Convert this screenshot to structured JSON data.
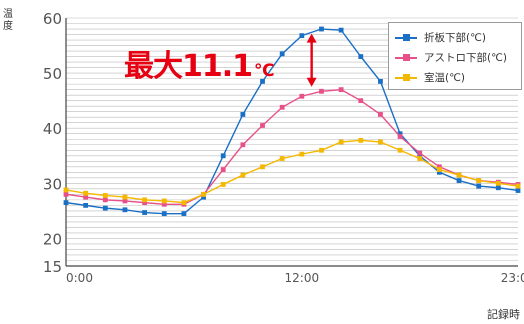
{
  "chart_data": {
    "type": "line",
    "ylabel": "温度",
    "xlabel": "記録時",
    "x_range": [
      0,
      23
    ],
    "y_range": [
      15,
      60
    ],
    "y_ticks": [
      15,
      20,
      30,
      40,
      50,
      60
    ],
    "x_ticks": [
      {
        "value": 0,
        "label": "0:00"
      },
      {
        "value": 12,
        "label": "12:00"
      },
      {
        "value": 23,
        "label": "23:00"
      }
    ],
    "grid": "horizontal-minor",
    "legend_position": "top-right",
    "x": [
      0,
      1,
      2,
      3,
      4,
      5,
      6,
      7,
      8,
      9,
      10,
      11,
      12,
      13,
      14,
      15,
      16,
      17,
      18,
      19,
      20,
      21,
      22,
      23
    ],
    "series": [
      {
        "name": "折板下部(℃)",
        "color": "#1a6fc6",
        "marker": "square",
        "values": [
          26.5,
          26.0,
          25.5,
          25.2,
          24.7,
          24.5,
          24.5,
          27.5,
          35.0,
          42.5,
          48.5,
          53.5,
          56.8,
          58.0,
          57.8,
          53.0,
          48.5,
          39.0,
          35.0,
          32.0,
          30.5,
          29.5,
          29.2,
          28.7
        ]
      },
      {
        "name": "アストロ下部(℃)",
        "color": "#e8508a",
        "marker": "square",
        "values": [
          28.0,
          27.5,
          27.0,
          26.8,
          26.5,
          26.2,
          26.2,
          28.0,
          32.5,
          37.0,
          40.5,
          43.8,
          45.8,
          46.7,
          47.0,
          45.0,
          42.5,
          38.5,
          35.5,
          33.0,
          31.5,
          30.5,
          30.2,
          29.8
        ]
      },
      {
        "name": "室温(℃)",
        "color": "#f5b800",
        "marker": "square",
        "values": [
          28.8,
          28.2,
          27.8,
          27.5,
          27.0,
          26.8,
          26.5,
          28.0,
          29.8,
          31.5,
          33.0,
          34.5,
          35.3,
          36.0,
          37.5,
          37.8,
          37.5,
          36.0,
          34.5,
          32.5,
          31.5,
          30.5,
          30.0,
          29.5
        ]
      }
    ],
    "annotation": {
      "text": "最大11.1",
      "unit": "℃",
      "color": "#e60012",
      "arrow_x": 12.5,
      "arrow_y_from": 46.8,
      "arrow_y_to": 57.9
    }
  },
  "accent_color": "#e60012",
  "axis_color": "#444444",
  "grid_color": "#bbbbbb"
}
